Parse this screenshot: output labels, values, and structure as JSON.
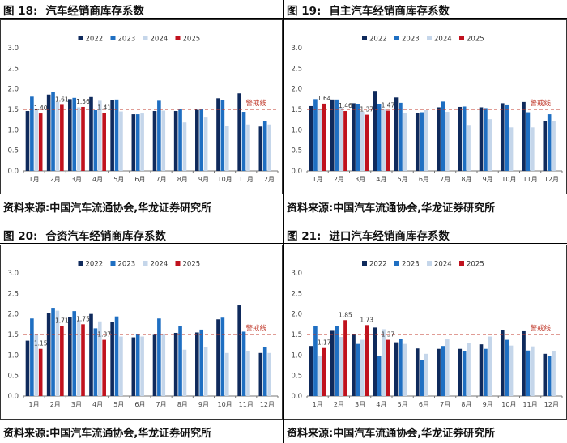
{
  "colors": {
    "2022": "#0f2a5c",
    "2023": "#1f6fc2",
    "2024": "#c5d6ea",
    "2025": "#c0121e",
    "ref": "#c0392b"
  },
  "panels": [
    {
      "fig_label": "图 18:",
      "title": "汽车经销商库存系数",
      "source": "资料来源:中国汽车流通协会,华龙证券研究所",
      "chart_data": {
        "type": "bar",
        "categories": [
          "1月",
          "2月",
          "3月",
          "4月",
          "5月",
          "6月",
          "7月",
          "8月",
          "9月",
          "10月",
          "11月",
          "12月"
        ],
        "ylim": [
          0,
          3
        ],
        "yticks": [
          "0.0",
          "0.5",
          "1.0",
          "1.5",
          "2.0",
          "2.5",
          "3.0"
        ],
        "legend": "top",
        "ref_line": 1.5,
        "ref_label": "警戒线",
        "series": [
          {
            "name": "2022",
            "values": [
              1.46,
              1.86,
              1.75,
              1.8,
              1.72,
              1.38,
              1.46,
              1.46,
              1.49,
              1.77,
              1.89,
              1.08
            ]
          },
          {
            "name": "2023",
            "values": [
              1.81,
              1.93,
              1.78,
              1.48,
              1.74,
              1.38,
              1.71,
              1.5,
              1.5,
              1.72,
              1.44,
              1.22
            ]
          },
          {
            "name": "2024",
            "values": [
              1.52,
              1.68,
              1.55,
              1.71,
              1.45,
              1.4,
              1.47,
              1.18,
              1.3,
              1.1,
              1.13,
              1.13
            ]
          },
          {
            "name": "2025",
            "values": [
              1.4,
              1.61,
              1.56,
              1.41,
              null,
              null,
              null,
              null,
              null,
              null,
              null,
              null
            ]
          }
        ],
        "data_labels": [
          {
            "month": 0,
            "text": "1.40"
          },
          {
            "month": 1,
            "text": "1.61"
          },
          {
            "month": 2,
            "text": "1.56"
          },
          {
            "month": 3,
            "text": "1.41"
          }
        ]
      }
    },
    {
      "fig_label": "图 19:",
      "title": "自主汽车经销商库存系数",
      "source": "资料来源:中国汽车流通协会,华龙证券研究所",
      "chart_data": {
        "type": "bar",
        "categories": [
          "1月",
          "2月",
          "3月",
          "4月",
          "5月",
          "6月",
          "7月",
          "8月",
          "9月",
          "10月",
          "11月",
          "12月"
        ],
        "ylim": [
          0,
          3
        ],
        "yticks": [
          "0.0",
          "0.5",
          "1.0",
          "1.5",
          "2.0",
          "2.5",
          "3.0"
        ],
        "legend": "top",
        "ref_line": 1.5,
        "ref_label": "警戒线",
        "series": [
          {
            "name": "2022",
            "values": [
              1.58,
              1.74,
              1.65,
              1.95,
              1.79,
              1.42,
              1.55,
              1.56,
              1.55,
              1.65,
              1.68,
              1.22
            ]
          },
          {
            "name": "2023",
            "values": [
              1.75,
              1.74,
              1.62,
              1.62,
              1.66,
              1.43,
              1.69,
              1.57,
              1.53,
              1.6,
              1.43,
              1.38
            ]
          },
          {
            "name": "2024",
            "values": [
              1.52,
              1.54,
              1.44,
              1.51,
              1.42,
              1.48,
              1.44,
              1.12,
              1.26,
              1.06,
              1.06,
              1.21
            ]
          },
          {
            "name": "2025",
            "values": [
              1.64,
              1.46,
              1.37,
              1.47,
              null,
              null,
              null,
              null,
              null,
              null,
              null,
              null
            ]
          }
        ],
        "data_labels": [
          {
            "month": 0,
            "text": "1.64"
          },
          {
            "month": 1,
            "text": "1.46"
          },
          {
            "month": 2,
            "text": "1.37"
          },
          {
            "month": 3,
            "text": "1.47"
          }
        ]
      }
    },
    {
      "fig_label": "图 20:",
      "title": "合资汽车经销商库存系数",
      "source": "资料来源:中国汽车流通协会,华龙证券研究所",
      "chart_data": {
        "type": "bar",
        "categories": [
          "1月",
          "2月",
          "3月",
          "4月",
          "5月",
          "6月",
          "7月",
          "8月",
          "9月",
          "10月",
          "11月",
          "12月"
        ],
        "ylim": [
          0,
          3
        ],
        "yticks": [
          "0.0",
          "0.5",
          "1.0",
          "1.5",
          "2.0",
          "2.5",
          "3.0"
        ],
        "legend": "top",
        "ref_line": 1.5,
        "ref_label": "警戒线",
        "series": [
          {
            "name": "2022",
            "values": [
              1.35,
              2.02,
              1.93,
              2.0,
              1.81,
              1.43,
              1.49,
              1.54,
              1.55,
              1.87,
              2.21,
              1.05
            ]
          },
          {
            "name": "2023",
            "values": [
              1.89,
              2.15,
              2.07,
              1.65,
              1.94,
              1.5,
              1.89,
              1.71,
              1.62,
              1.91,
              1.57,
              1.19
            ]
          },
          {
            "name": "2024",
            "values": [
              1.5,
              2.08,
              1.85,
              1.82,
              1.45,
              1.45,
              1.52,
              1.13,
              1.19,
              1.05,
              1.1,
              1.05
            ]
          },
          {
            "name": "2025",
            "values": [
              1.15,
              1.71,
              1.75,
              1.37,
              null,
              null,
              null,
              null,
              null,
              null,
              null,
              null
            ]
          }
        ],
        "data_labels": [
          {
            "month": 0,
            "text": "1.15"
          },
          {
            "month": 1,
            "text": "1.71"
          },
          {
            "month": 2,
            "text": "1.75"
          },
          {
            "month": 3,
            "text": "1.37"
          }
        ]
      }
    },
    {
      "fig_label": "图 21:",
      "title": "进口汽车经销商库存系数",
      "source": "资料来源:中国汽车流通协会,华龙证券研究所",
      "chart_data": {
        "type": "bar",
        "categories": [
          "1月",
          "2月",
          "3月",
          "4月",
          "5月",
          "6月",
          "7月",
          "8月",
          "9月",
          "10月",
          "11月",
          "12月"
        ],
        "ylim": [
          0,
          3
        ],
        "yticks": [
          "0.0",
          "0.5",
          "1.0",
          "1.5",
          "2.0",
          "2.5",
          "3.0"
        ],
        "legend": "top",
        "ref_line": 1.5,
        "ref_label": "警戒线",
        "series": [
          {
            "name": "2022",
            "values": [
              1.22,
              1.59,
              1.5,
              1.67,
              1.31,
              1.16,
              1.15,
              1.15,
              1.26,
              1.6,
              1.58,
              1.03
            ]
          },
          {
            "name": "2023",
            "values": [
              1.71,
              1.7,
              1.27,
              0.98,
              1.4,
              0.88,
              1.22,
              1.1,
              1.15,
              1.37,
              1.11,
              0.98
            ]
          },
          {
            "name": "2024",
            "values": [
              0.98,
              1.44,
              1.37,
              1.63,
              1.27,
              1.03,
              1.38,
              1.29,
              1.45,
              1.23,
              1.21,
              1.1
            ]
          },
          {
            "name": "2025",
            "values": [
              1.17,
              1.85,
              1.73,
              1.37,
              null,
              null,
              null,
              null,
              null,
              null,
              null,
              null
            ]
          }
        ],
        "data_labels": [
          {
            "month": 0,
            "text": "1.17"
          },
          {
            "month": 1,
            "text": "1.85"
          },
          {
            "month": 2,
            "text": "1.73"
          },
          {
            "month": 3,
            "text": "1.37"
          }
        ]
      }
    }
  ]
}
